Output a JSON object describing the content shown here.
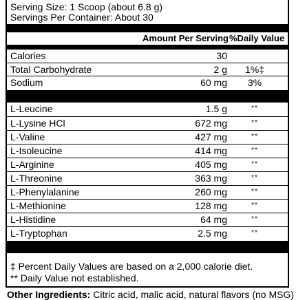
{
  "serving": {
    "size": "Serving Size: 1 Scoop (about 6.8 g)",
    "per_container": "Servings Per Container: About 30"
  },
  "header": {
    "amount_per_serving": "Amount Per Serving",
    "daily_value": "%Daily Value"
  },
  "nutrients": [
    {
      "name": "Calories",
      "amount": "30",
      "dv": ""
    },
    {
      "name": "Total Carbohydrate",
      "amount": "2 g",
      "dv": "1%‡"
    },
    {
      "name": "Sodium",
      "amount": "60 mg",
      "dv": "3%"
    }
  ],
  "amino_acids": [
    {
      "name": "L-Leucine",
      "amount": "1.5 g",
      "dv": "**"
    },
    {
      "name": "L-Lysine HCl",
      "amount": "672 mg",
      "dv": "**"
    },
    {
      "name": "L-Valine",
      "amount": "427 mg",
      "dv": "**"
    },
    {
      "name": "L-Isoleucine",
      "amount": "414 mg",
      "dv": "**"
    },
    {
      "name": "L-Arginine",
      "amount": "405 mg",
      "dv": "**"
    },
    {
      "name": "L-Threonine",
      "amount": "363 mg",
      "dv": "**"
    },
    {
      "name": "L-Phenylalanine",
      "amount": "260 mg",
      "dv": "**"
    },
    {
      "name": "L-Methionine",
      "amount": "128 mg",
      "dv": "**"
    },
    {
      "name": "L-Histidine",
      "amount": "64 mg",
      "dv": "**"
    },
    {
      "name": "L-Tryptophan",
      "amount": "2.5 mg",
      "dv": "**"
    }
  ],
  "footnotes": {
    "percent": "‡ Percent Daily Values are based on a 2,000 calorie diet.",
    "not_established": "** Daily Value not established."
  },
  "other_ingredients": {
    "label": "Other Ingredients:",
    "text": " Citric acid, malic acid, natural flavors (no MSG)"
  }
}
